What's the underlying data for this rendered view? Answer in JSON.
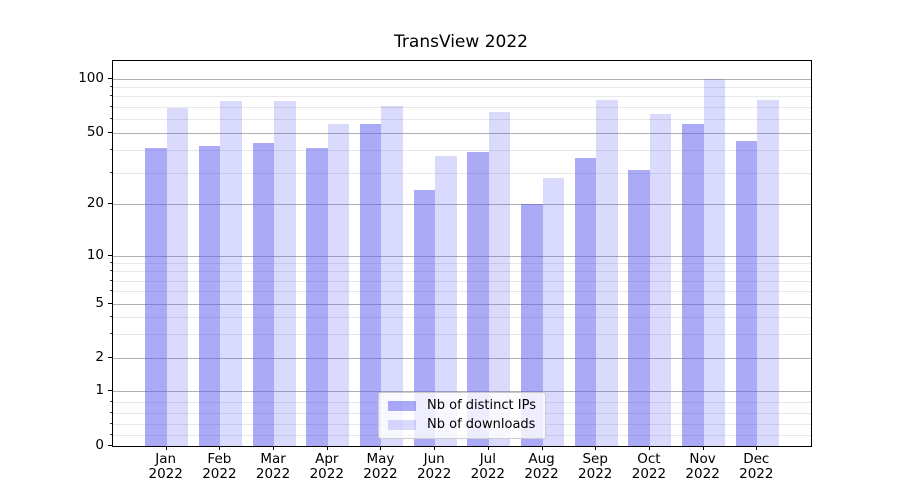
{
  "chart_data": {
    "type": "bar",
    "title": "TransView 2022",
    "categories": [
      "Jan",
      "Feb",
      "Mar",
      "Apr",
      "May",
      "Jun",
      "Jul",
      "Aug",
      "Sep",
      "Oct",
      "Nov",
      "Dec"
    ],
    "category_year": "2022",
    "series": [
      {
        "name": "Nb of distinct IPs",
        "color": "rgba(85,85,240,0.5)",
        "values": [
          41,
          42,
          44,
          41,
          56,
          24,
          39,
          20,
          36,
          31,
          56,
          45
        ]
      },
      {
        "name": "Nb of downloads",
        "color": "rgba(85,85,240,0.22)",
        "values": [
          69,
          75,
          75,
          56,
          71,
          37,
          65,
          28,
          76,
          64,
          100,
          76
        ]
      }
    ],
    "yscale": "symlog",
    "ylim": [
      0,
      125
    ],
    "y_major_ticks": [
      0,
      1,
      2,
      5,
      10,
      20,
      50,
      100
    ],
    "y_minor_ticks": [
      0.2,
      0.4,
      0.6,
      0.8,
      3,
      4,
      6,
      7,
      8,
      9,
      30,
      40,
      60,
      70,
      80,
      90
    ],
    "grid": "both",
    "legend_position": "lower center"
  },
  "colors": {
    "grid_major": "#b0b0b0",
    "grid_minor": "#e7e7e7",
    "spine": "#000000",
    "legend_border": "#cccccc",
    "legend_background": "rgba(255,255,255,0.8)"
  }
}
